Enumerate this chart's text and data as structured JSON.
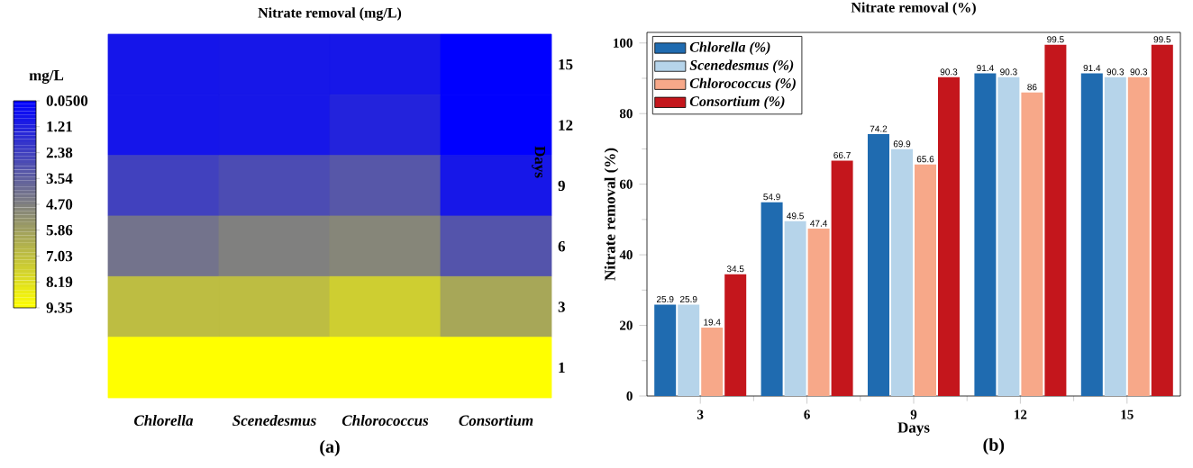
{
  "chart_data": [
    {
      "type": "heatmap",
      "title": "Nitrate removal (mg/L)",
      "ylabel": "Days",
      "clabel": "mg/L",
      "categories": [
        "Chlorella",
        "Scenedesmus",
        "Chlorococcus",
        "Consortium"
      ],
      "y_categories": [
        "15",
        "12",
        "9",
        "6",
        "3",
        "1"
      ],
      "cells": [
        [
          0.8,
          0.9,
          0.9,
          0.05
        ],
        [
          0.8,
          0.9,
          1.3,
          0.05
        ],
        [
          2.4,
          2.8,
          3.2,
          0.9
        ],
        [
          4.2,
          4.7,
          4.9,
          3.1
        ],
        [
          6.9,
          6.9,
          7.5,
          6.1
        ],
        [
          9.35,
          9.35,
          9.35,
          9.35
        ]
      ],
      "clim": [
        0.05,
        9.35
      ],
      "cticks": [
        {
          "value": 0.05,
          "label": "0.0500"
        },
        1.21,
        2.38,
        3.54,
        {
          "value": 4.7,
          "label": "4.70"
        },
        5.86,
        7.03,
        8.19,
        9.35
      ],
      "annotations": [
        "(a)"
      ]
    },
    {
      "type": "bar",
      "title": "Nitrate removal (%)",
      "xlabel": "Days",
      "ylabel": "Nitrate removal (%)",
      "categories": [
        "3",
        "6",
        "9",
        "12",
        "15"
      ],
      "series": [
        {
          "name": "Chlorella (%)",
          "color": "#1f6bb0",
          "values": [
            25.9,
            54.9,
            74.2,
            91.4,
            91.4
          ]
        },
        {
          "name": "Scenedesmus (%)",
          "color": "#b6d4ea",
          "values": [
            25.9,
            49.5,
            69.9,
            90.3,
            90.3
          ]
        },
        {
          "name": "Chlorococcus (%)",
          "color": "#f7a889",
          "values": [
            19.4,
            47.4,
            65.6,
            86,
            90.3
          ]
        },
        {
          "name": "Consortium (%)",
          "color": "#c4161c",
          "values": [
            34.5,
            66.7,
            90.3,
            99.5,
            99.5
          ]
        }
      ],
      "ylim": [
        0,
        103
      ],
      "yticks": [
        0,
        20,
        40,
        60,
        80,
        100
      ],
      "data_labels": true,
      "legend": "top left",
      "grid": false,
      "annotations": [
        "(b)"
      ]
    }
  ]
}
